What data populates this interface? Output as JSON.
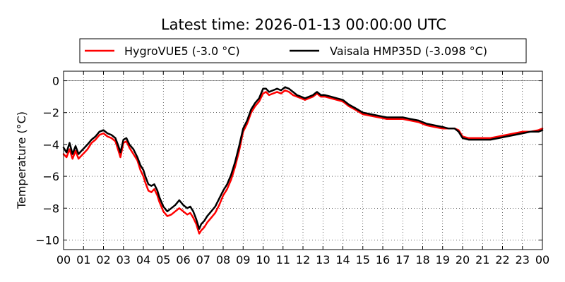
{
  "chart_data": {
    "type": "line",
    "title": "Latest time: 2026-01-13 00:00:00 UTC",
    "xlabel": "",
    "ylabel": "Temperature (°C)",
    "xlim": [
      0,
      24
    ],
    "ylim": [
      -10.6,
      0.6
    ],
    "x_ticks": [
      0,
      1,
      2,
      3,
      4,
      5,
      6,
      7,
      8,
      9,
      10,
      11,
      12,
      13,
      14,
      15,
      16,
      17,
      18,
      19,
      20,
      21,
      22,
      23,
      24
    ],
    "x_tick_labels": [
      "00",
      "01",
      "02",
      "03",
      "04",
      "05",
      "06",
      "07",
      "08",
      "09",
      "10",
      "11",
      "12",
      "13",
      "14",
      "15",
      "16",
      "17",
      "18",
      "19",
      "20",
      "21",
      "22",
      "23",
      "00"
    ],
    "y_ticks": [
      0,
      -2,
      -4,
      -6,
      -8,
      -10
    ],
    "y_tick_labels": [
      "0",
      "−2",
      "−4",
      "−6",
      "−8",
      "−10"
    ],
    "grid": true,
    "reference_line": 0,
    "legend_position": "top, above plot",
    "series": [
      {
        "name": "HygroVUE5 (-3.0 °C)",
        "color": "#ff0000",
        "x": [
          0,
          0.15,
          0.3,
          0.45,
          0.6,
          0.75,
          0.9,
          1.05,
          1.2,
          1.4,
          1.6,
          1.8,
          2.0,
          2.2,
          2.4,
          2.6,
          2.75,
          2.85,
          3.0,
          3.15,
          3.3,
          3.5,
          3.7,
          3.85,
          4.0,
          4.1,
          4.25,
          4.4,
          4.55,
          4.7,
          4.8,
          5.0,
          5.2,
          5.4,
          5.6,
          5.8,
          6.0,
          6.2,
          6.35,
          6.5,
          6.65,
          6.8,
          6.9,
          7.05,
          7.2,
          7.4,
          7.6,
          7.8,
          8.0,
          8.2,
          8.4,
          8.6,
          8.8,
          9.0,
          9.2,
          9.4,
          9.6,
          9.8,
          10.0,
          10.15,
          10.3,
          10.5,
          10.7,
          10.9,
          11.1,
          11.3,
          11.5,
          11.7,
          11.9,
          12.1,
          12.3,
          12.5,
          12.7,
          12.9,
          13.1,
          13.4,
          13.7,
          14.0,
          14.3,
          14.6,
          15.0,
          15.4,
          15.8,
          16.2,
          16.6,
          17.0,
          17.4,
          17.8,
          18.2,
          18.6,
          19.0,
          19.3,
          19.6,
          19.8,
          20.0,
          20.3,
          20.6,
          21.0,
          21.4,
          21.8,
          22.2,
          22.6,
          23.0,
          23.4,
          23.8,
          24.0
        ],
        "values": [
          -4.6,
          -4.8,
          -4.3,
          -4.9,
          -4.4,
          -4.9,
          -4.7,
          -4.5,
          -4.3,
          -3.9,
          -3.7,
          -3.4,
          -3.3,
          -3.5,
          -3.6,
          -3.8,
          -4.4,
          -4.8,
          -3.9,
          -3.8,
          -4.2,
          -4.6,
          -5.0,
          -5.6,
          -6.0,
          -6.4,
          -6.9,
          -7.0,
          -6.8,
          -7.2,
          -7.6,
          -8.2,
          -8.5,
          -8.4,
          -8.2,
          -8.0,
          -8.2,
          -8.4,
          -8.3,
          -8.6,
          -9.0,
          -9.6,
          -9.4,
          -9.2,
          -8.9,
          -8.6,
          -8.3,
          -7.8,
          -7.2,
          -6.8,
          -6.2,
          -5.4,
          -4.4,
          -3.2,
          -2.7,
          -2.0,
          -1.6,
          -1.3,
          -0.8,
          -0.7,
          -0.9,
          -0.8,
          -0.7,
          -0.8,
          -0.6,
          -0.7,
          -0.9,
          -1.0,
          -1.1,
          -1.2,
          -1.1,
          -1.0,
          -0.8,
          -1.0,
          -1.0,
          -1.1,
          -1.2,
          -1.3,
          -1.6,
          -1.8,
          -2.1,
          -2.2,
          -2.3,
          -2.4,
          -2.4,
          -2.4,
          -2.5,
          -2.6,
          -2.8,
          -2.9,
          -3.0,
          -3.0,
          -3.0,
          -3.1,
          -3.5,
          -3.6,
          -3.6,
          -3.6,
          -3.6,
          -3.5,
          -3.4,
          -3.3,
          -3.2,
          -3.2,
          -3.1,
          -3.0
        ]
      },
      {
        "name": "Vaisala HMP35D (-3.098 °C)",
        "color": "#000000",
        "x": [
          0,
          0.15,
          0.3,
          0.45,
          0.6,
          0.75,
          0.9,
          1.05,
          1.2,
          1.4,
          1.6,
          1.8,
          2.0,
          2.2,
          2.4,
          2.6,
          2.75,
          2.85,
          3.0,
          3.15,
          3.3,
          3.5,
          3.7,
          3.85,
          4.0,
          4.1,
          4.25,
          4.4,
          4.55,
          4.7,
          4.8,
          5.0,
          5.2,
          5.4,
          5.6,
          5.8,
          6.0,
          6.2,
          6.35,
          6.5,
          6.65,
          6.8,
          6.9,
          7.05,
          7.2,
          7.4,
          7.6,
          7.8,
          8.0,
          8.2,
          8.4,
          8.6,
          8.8,
          9.0,
          9.2,
          9.4,
          9.6,
          9.8,
          10.0,
          10.15,
          10.3,
          10.5,
          10.7,
          10.9,
          11.1,
          11.3,
          11.5,
          11.7,
          11.9,
          12.1,
          12.3,
          12.5,
          12.7,
          12.9,
          13.1,
          13.4,
          13.7,
          14.0,
          14.3,
          14.6,
          15.0,
          15.4,
          15.8,
          16.2,
          16.6,
          17.0,
          17.4,
          17.8,
          18.2,
          18.6,
          19.0,
          19.3,
          19.6,
          19.8,
          20.0,
          20.3,
          20.6,
          21.0,
          21.4,
          21.8,
          22.2,
          22.6,
          23.0,
          23.4,
          23.8,
          24.0
        ],
        "values": [
          -4.2,
          -4.5,
          -3.9,
          -4.6,
          -4.1,
          -4.6,
          -4.4,
          -4.2,
          -4.0,
          -3.7,
          -3.5,
          -3.2,
          -3.1,
          -3.3,
          -3.4,
          -3.6,
          -4.1,
          -4.5,
          -3.7,
          -3.6,
          -4.0,
          -4.3,
          -4.8,
          -5.3,
          -5.6,
          -6.0,
          -6.5,
          -6.6,
          -6.5,
          -6.9,
          -7.3,
          -7.9,
          -8.2,
          -8.0,
          -7.8,
          -7.5,
          -7.8,
          -8.0,
          -7.9,
          -8.2,
          -8.7,
          -9.3,
          -9.0,
          -8.8,
          -8.5,
          -8.2,
          -7.9,
          -7.4,
          -6.9,
          -6.5,
          -5.9,
          -5.1,
          -4.1,
          -3.0,
          -2.5,
          -1.8,
          -1.4,
          -1.1,
          -0.5,
          -0.5,
          -0.7,
          -0.6,
          -0.5,
          -0.6,
          -0.4,
          -0.5,
          -0.7,
          -0.9,
          -1.0,
          -1.1,
          -1.0,
          -0.9,
          -0.7,
          -0.9,
          -0.9,
          -1.0,
          -1.1,
          -1.2,
          -1.5,
          -1.7,
          -2.0,
          -2.1,
          -2.2,
          -2.3,
          -2.3,
          -2.3,
          -2.4,
          -2.5,
          -2.7,
          -2.8,
          -2.9,
          -3.0,
          -3.0,
          -3.2,
          -3.6,
          -3.7,
          -3.7,
          -3.7,
          -3.7,
          -3.6,
          -3.5,
          -3.4,
          -3.3,
          -3.2,
          -3.2,
          -3.1
        ]
      }
    ]
  }
}
